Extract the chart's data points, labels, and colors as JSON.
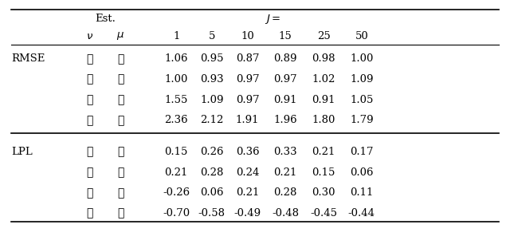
{
  "title_est": "Est.",
  "title_J": "$J =$",
  "col_headers": [
    "$\\nu$",
    "$\\mu$",
    "1",
    "5",
    "10",
    "15",
    "25",
    "50"
  ],
  "sections": [
    {
      "label": "RMSE",
      "rows": [
        {
          "nu": true,
          "mu": true,
          "vals": [
            "1.06",
            "0.95",
            "0.87",
            "0.89",
            "0.98",
            "1.00"
          ]
        },
        {
          "nu": true,
          "mu": false,
          "vals": [
            "1.00",
            "0.93",
            "0.97",
            "0.97",
            "1.02",
            "1.09"
          ]
        },
        {
          "nu": false,
          "mu": true,
          "vals": [
            "1.55",
            "1.09",
            "0.97",
            "0.91",
            "0.91",
            "1.05"
          ]
        },
        {
          "nu": false,
          "mu": false,
          "vals": [
            "2.36",
            "2.12",
            "1.91",
            "1.96",
            "1.80",
            "1.79"
          ]
        }
      ]
    },
    {
      "label": "LPL",
      "rows": [
        {
          "nu": true,
          "mu": true,
          "vals": [
            "0.15",
            "0.26",
            "0.36",
            "0.33",
            "0.21",
            "0.17"
          ]
        },
        {
          "nu": true,
          "mu": false,
          "vals": [
            "0.21",
            "0.28",
            "0.24",
            "0.21",
            "0.15",
            "0.06"
          ]
        },
        {
          "nu": false,
          "mu": true,
          "vals": [
            "-0.26",
            "0.06",
            "0.21",
            "0.28",
            "0.30",
            "0.11"
          ]
        },
        {
          "nu": false,
          "mu": false,
          "vals": [
            "-0.70",
            "-0.58",
            "-0.49",
            "-0.48",
            "-0.45",
            "-0.44"
          ]
        }
      ]
    }
  ],
  "check": "✓",
  "cross": "✗",
  "bg_color": "#ffffff",
  "text_color": "#000000",
  "line_color": "#000000"
}
